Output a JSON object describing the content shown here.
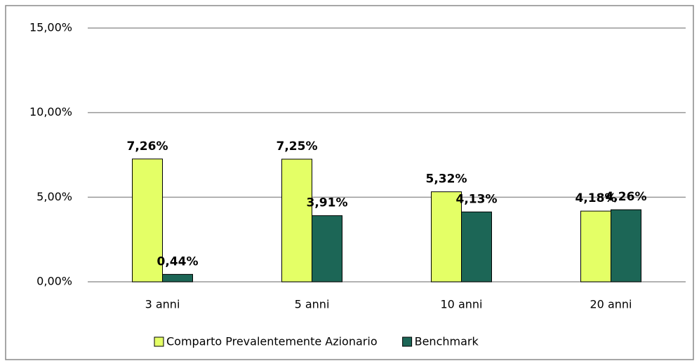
{
  "chart_data": {
    "type": "bar",
    "categories": [
      "3 anni",
      "5 anni",
      "10 anni",
      "20 anni"
    ],
    "series": [
      {
        "name": "Comparto Prevalentemente Azionario",
        "color": "#e4ff66",
        "values": [
          7.26,
          7.25,
          5.32,
          4.18
        ],
        "value_labels": [
          "7,26%",
          "7,25%",
          "5,32%",
          "4,18%"
        ]
      },
      {
        "name": "Benchmark",
        "color": "#1c6656",
        "values": [
          0.44,
          3.91,
          4.13,
          4.26
        ],
        "value_labels": [
          "0,44%",
          "3,91%",
          "4,13%",
          "4,26%"
        ]
      }
    ],
    "ylim": [
      0,
      15
    ],
    "yticks": [
      {
        "value": 0,
        "label": "0,00%"
      },
      {
        "value": 5,
        "label": "5,00%"
      },
      {
        "value": 10,
        "label": "10,00%"
      },
      {
        "value": 15,
        "label": "15,00%"
      }
    ],
    "grid": true,
    "legend": "bottom"
  }
}
